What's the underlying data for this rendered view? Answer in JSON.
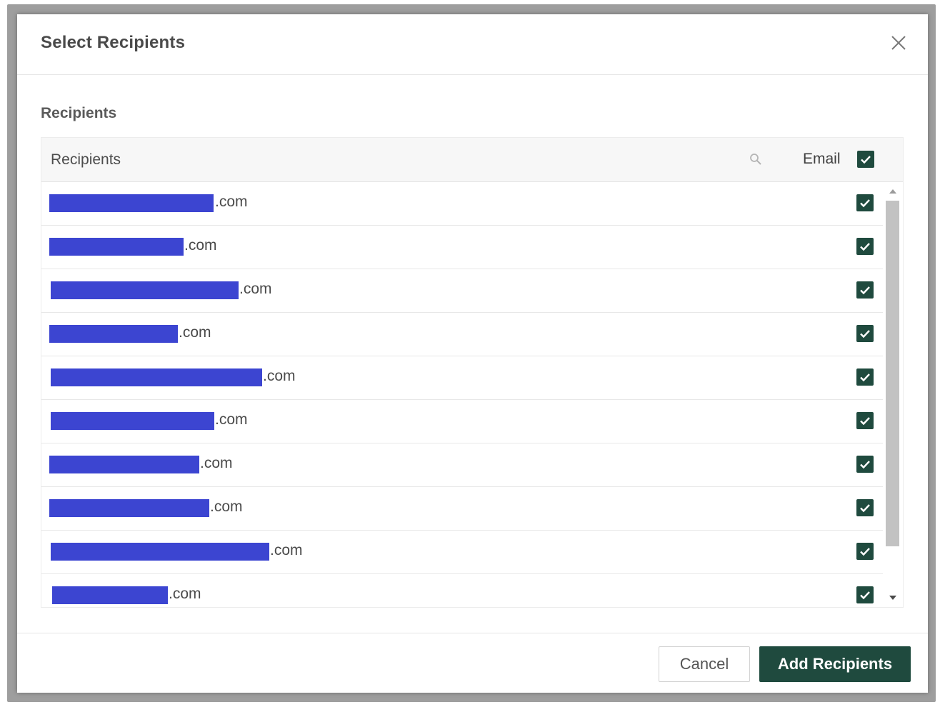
{
  "dialog": {
    "title": "Select Recipients",
    "section_label": "Recipients"
  },
  "table": {
    "header_label": "Recipients",
    "email_label": "Email",
    "email_all_checked": true,
    "rows": [
      {
        "domain": ".com",
        "email_checked": true
      },
      {
        "domain": ".com",
        "email_checked": true
      },
      {
        "domain": ".com",
        "email_checked": true
      },
      {
        "domain": ".com",
        "email_checked": true
      },
      {
        "domain": ".com",
        "email_checked": true
      },
      {
        "domain": ".com",
        "email_checked": true
      },
      {
        "domain": ".com",
        "email_checked": true
      },
      {
        "domain": ".com",
        "email_checked": true
      },
      {
        "domain": ".com",
        "email_checked": true
      },
      {
        "domain": ".com",
        "email_checked": true
      }
    ]
  },
  "footer": {
    "cancel_label": "Cancel",
    "add_label": "Add Recipients"
  },
  "colors": {
    "accent": "#1f4a3e",
    "redaction": "#3c45d1"
  }
}
